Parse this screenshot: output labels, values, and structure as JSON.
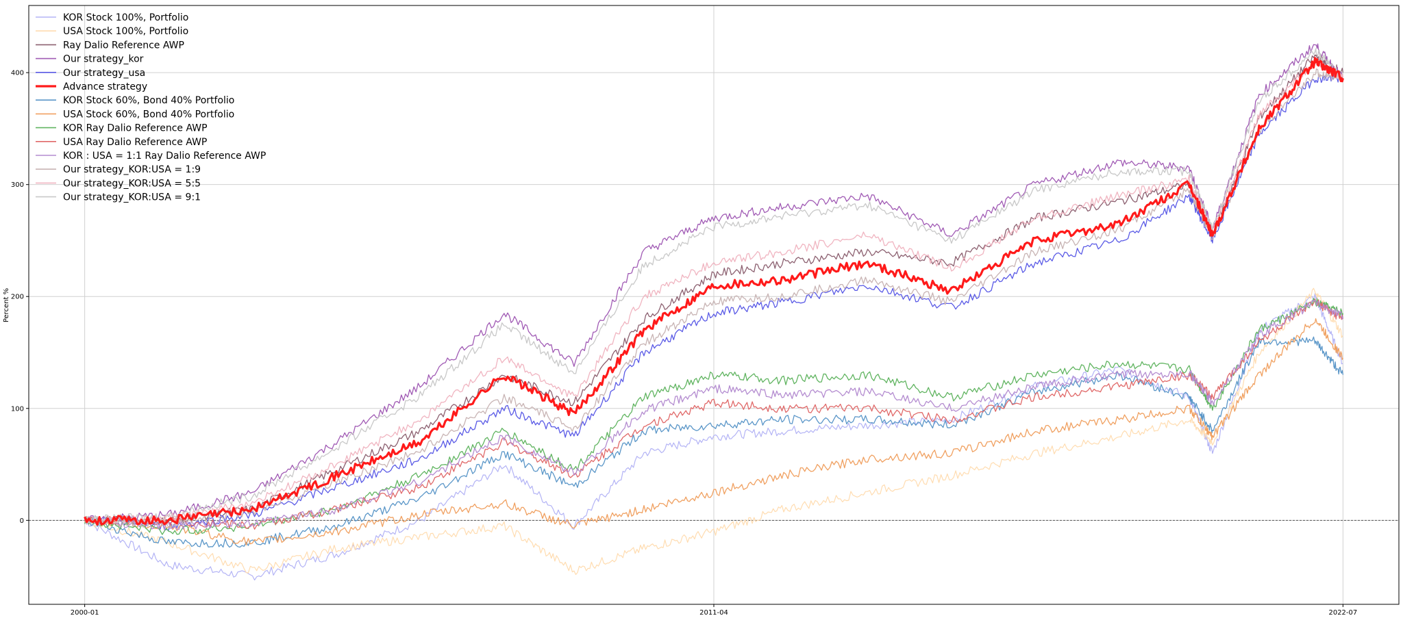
{
  "chart_data": {
    "type": "line",
    "title": "",
    "xlabel": "",
    "ylabel": "Percent %",
    "x_ticks": [
      "2000-01",
      "2011-04",
      "2022-07"
    ],
    "y_ticks": [
      0,
      100,
      200,
      300,
      400
    ],
    "xlim": [
      "1999-01",
      "2023-07"
    ],
    "ylim": [
      -75,
      460
    ],
    "grid": true,
    "zero_line": "dashed",
    "legend_position": "upper-left",
    "x": [
      "2000-01",
      "2001-07",
      "2003-01",
      "2004-07",
      "2006-01",
      "2007-07",
      "2008-10",
      "2010-01",
      "2011-04",
      "2012-07",
      "2014-01",
      "2015-07",
      "2017-01",
      "2018-07",
      "2019-10",
      "2020-03",
      "2021-01",
      "2022-01",
      "2022-07"
    ],
    "series": [
      {
        "name": "KOR Stock 100%, Portfolio",
        "color": "#b3b3f5",
        "width": 1.2,
        "values": [
          0,
          -40,
          -50,
          -30,
          0,
          50,
          -5,
          60,
          75,
          80,
          85,
          90,
          120,
          135,
          110,
          60,
          170,
          200,
          140
        ]
      },
      {
        "name": "USA Stock 100%, Portfolio",
        "color": "#ffdcb0",
        "width": 1.2,
        "values": [
          0,
          -20,
          -45,
          -25,
          -15,
          -5,
          -45,
          -25,
          -10,
          10,
          25,
          40,
          60,
          75,
          90,
          70,
          150,
          205,
          165
        ]
      },
      {
        "name": "Ray Dalio Reference AWP",
        "color": "#8c6070",
        "width": 1.3,
        "values": [
          0,
          0,
          10,
          45,
          80,
          130,
          105,
          180,
          220,
          230,
          240,
          230,
          270,
          285,
          300,
          255,
          360,
          415,
          400
        ]
      },
      {
        "name": "Our strategy_kor",
        "color": "#a05ab4",
        "width": 1.3,
        "values": [
          0,
          5,
          25,
          70,
          120,
          185,
          140,
          240,
          270,
          280,
          290,
          255,
          300,
          320,
          315,
          260,
          380,
          425,
          395
        ]
      },
      {
        "name": "Our strategy_usa",
        "color": "#5a5ae6",
        "width": 1.3,
        "values": [
          0,
          -5,
          5,
          30,
          55,
          100,
          75,
          150,
          185,
          195,
          210,
          190,
          230,
          250,
          290,
          250,
          345,
          395,
          395
        ]
      },
      {
        "name": "Advance strategy",
        "color": "#ff1a1a",
        "width": 3.2,
        "values": [
          0,
          0,
          10,
          40,
          70,
          130,
          95,
          170,
          210,
          215,
          230,
          205,
          250,
          265,
          300,
          255,
          350,
          410,
          395
        ]
      },
      {
        "name": "KOR Stock 60%, Bond 40% Portfolio",
        "color": "#5a96c8",
        "width": 1.3,
        "values": [
          0,
          -20,
          -20,
          -5,
          20,
          60,
          30,
          80,
          85,
          90,
          90,
          85,
          115,
          130,
          110,
          80,
          160,
          160,
          130
        ]
      },
      {
        "name": "USA Stock 60%, Bond 40% Portfolio",
        "color": "#f0a060",
        "width": 1.3,
        "values": [
          0,
          -5,
          -20,
          -10,
          5,
          15,
          -5,
          10,
          25,
          40,
          55,
          60,
          80,
          90,
          100,
          75,
          130,
          180,
          145
        ]
      },
      {
        "name": "KOR Ray Dalio Reference AWP",
        "color": "#60b460",
        "width": 1.3,
        "values": [
          0,
          -10,
          -5,
          10,
          40,
          80,
          45,
          110,
          130,
          125,
          130,
          110,
          130,
          140,
          135,
          100,
          170,
          195,
          185
        ]
      },
      {
        "name": "USA Ray Dalio Reference AWP",
        "color": "#e06868",
        "width": 1.3,
        "values": [
          0,
          0,
          -5,
          10,
          30,
          70,
          40,
          85,
          105,
          100,
          100,
          90,
          110,
          120,
          130,
          110,
          160,
          195,
          180
        ]
      },
      {
        "name": "KOR : USA = 1:1 Ray Dalio Reference AWP",
        "color": "#b48cd0",
        "width": 1.3,
        "values": [
          0,
          -5,
          -3,
          10,
          35,
          75,
          42,
          98,
          118,
          112,
          115,
          100,
          120,
          130,
          132,
          105,
          165,
          195,
          182
        ]
      },
      {
        "name": "Our strategy_KOR:USA = 1:9",
        "color": "#c8b4b4",
        "width": 1.3,
        "values": [
          0,
          -3,
          8,
          35,
          62,
          110,
          82,
          158,
          195,
          200,
          215,
          195,
          240,
          260,
          295,
          252,
          348,
          400,
          395
        ]
      },
      {
        "name": "Our strategy_KOR:USA = 5:5",
        "color": "#f0b4c0",
        "width": 1.3,
        "values": [
          0,
          2,
          15,
          50,
          90,
          145,
          110,
          200,
          230,
          240,
          255,
          225,
          270,
          290,
          305,
          258,
          362,
          410,
          396
        ]
      },
      {
        "name": "Our strategy_KOR:USA = 9:1",
        "color": "#c8c8c8",
        "width": 1.3,
        "values": [
          0,
          4,
          22,
          65,
          112,
          175,
          132,
          228,
          262,
          272,
          282,
          250,
          295,
          312,
          312,
          260,
          375,
          420,
          395
        ]
      }
    ]
  }
}
